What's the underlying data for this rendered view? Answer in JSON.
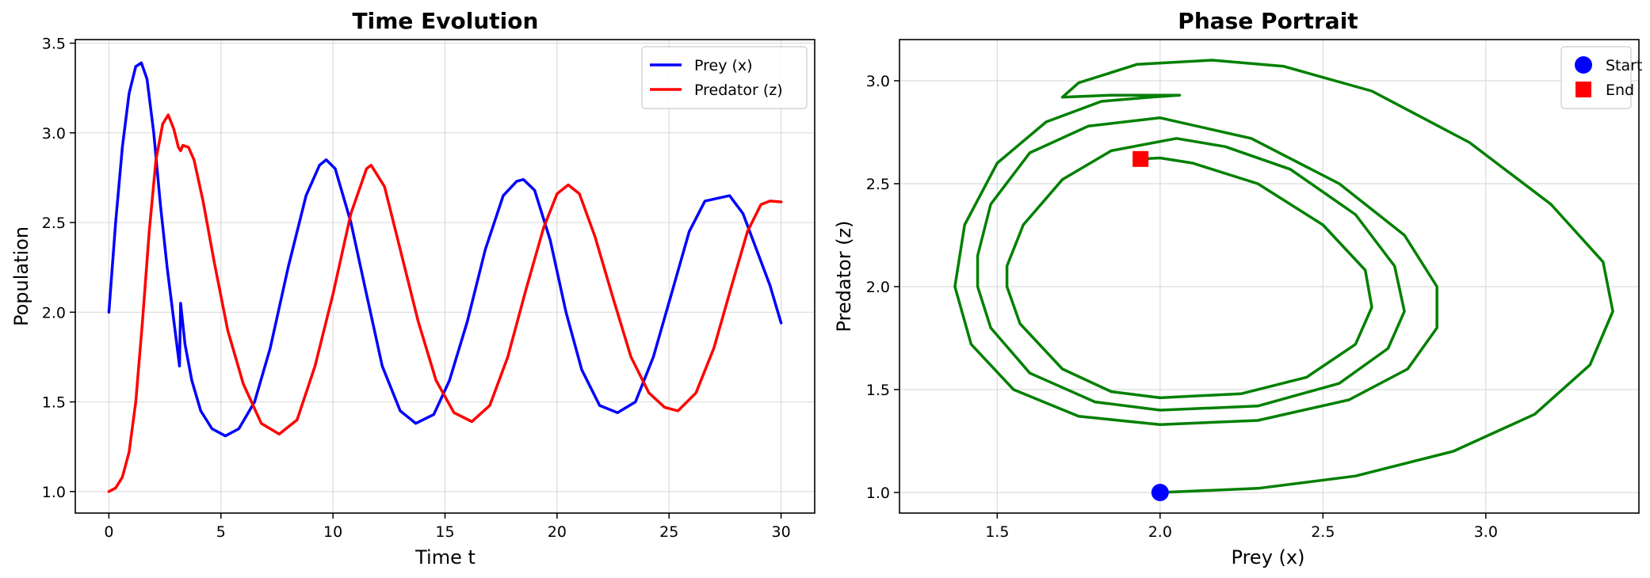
{
  "chart_data": [
    {
      "type": "line",
      "title": "Time Evolution",
      "xlabel": "Time t",
      "ylabel": "Population",
      "xlim": [
        -1.5,
        31.5
      ],
      "ylim": [
        0.88,
        3.52
      ],
      "xticks": [
        0,
        5,
        10,
        15,
        20,
        25,
        30
      ],
      "yticks": [
        1.0,
        1.5,
        2.0,
        2.5,
        3.0,
        3.5
      ],
      "xtick_labels": [
        "0",
        "5",
        "10",
        "15",
        "20",
        "25",
        "30"
      ],
      "ytick_labels": [
        "1.0",
        "1.5",
        "2.0",
        "2.5",
        "3.0",
        "3.5"
      ],
      "grid": true,
      "legend_position": "top-right",
      "series": [
        {
          "name": "Prey (x)",
          "color": "#0000ff",
          "points": [
            [
              0,
              2.0
            ],
            [
              0.3,
              2.5
            ],
            [
              0.6,
              2.92
            ],
            [
              0.9,
              3.22
            ],
            [
              1.2,
              3.37
            ],
            [
              1.45,
              3.39
            ],
            [
              1.7,
              3.3
            ],
            [
              2.0,
              3.0
            ],
            [
              2.3,
              2.6
            ],
            [
              2.6,
              2.25
            ],
            [
              2.9,
              1.95
            ],
            [
              3.1,
              1.75
            ],
            [
              3.15,
              1.7
            ],
            [
              3.18,
              1.9
            ],
            [
              3.2,
              2.05
            ],
            [
              3.4,
              1.82
            ],
            [
              3.7,
              1.62
            ],
            [
              4.1,
              1.45
            ],
            [
              4.6,
              1.35
            ],
            [
              5.2,
              1.31
            ],
            [
              5.8,
              1.35
            ],
            [
              6.5,
              1.5
            ],
            [
              7.2,
              1.8
            ],
            [
              8.0,
              2.25
            ],
            [
              8.8,
              2.65
            ],
            [
              9.4,
              2.82
            ],
            [
              9.7,
              2.85
            ],
            [
              10.1,
              2.8
            ],
            [
              10.8,
              2.5
            ],
            [
              11.5,
              2.1
            ],
            [
              12.2,
              1.7
            ],
            [
              13.0,
              1.45
            ],
            [
              13.7,
              1.38
            ],
            [
              14.5,
              1.43
            ],
            [
              15.2,
              1.62
            ],
            [
              16.0,
              1.95
            ],
            [
              16.8,
              2.35
            ],
            [
              17.6,
              2.65
            ],
            [
              18.2,
              2.73
            ],
            [
              18.5,
              2.74
            ],
            [
              19.0,
              2.68
            ],
            [
              19.7,
              2.4
            ],
            [
              20.4,
              2.0
            ],
            [
              21.1,
              1.68
            ],
            [
              21.9,
              1.48
            ],
            [
              22.7,
              1.44
            ],
            [
              23.5,
              1.5
            ],
            [
              24.3,
              1.75
            ],
            [
              25.1,
              2.1
            ],
            [
              25.9,
              2.45
            ],
            [
              26.6,
              2.62
            ],
            [
              27.7,
              2.65
            ],
            [
              28.3,
              2.55
            ],
            [
              28.9,
              2.35
            ],
            [
              29.5,
              2.15
            ],
            [
              30.0,
              1.94
            ]
          ]
        },
        {
          "name": "Predator (z)",
          "color": "#ff0000",
          "points": [
            [
              0,
              1.0
            ],
            [
              0.3,
              1.02
            ],
            [
              0.6,
              1.08
            ],
            [
              0.9,
              1.22
            ],
            [
              1.2,
              1.5
            ],
            [
              1.5,
              1.95
            ],
            [
              1.8,
              2.45
            ],
            [
              2.1,
              2.85
            ],
            [
              2.4,
              3.05
            ],
            [
              2.65,
              3.1
            ],
            [
              2.9,
              3.02
            ],
            [
              3.1,
              2.92
            ],
            [
              3.2,
              2.9
            ],
            [
              3.3,
              2.93
            ],
            [
              3.55,
              2.92
            ],
            [
              3.8,
              2.85
            ],
            [
              4.2,
              2.62
            ],
            [
              4.7,
              2.28
            ],
            [
              5.3,
              1.9
            ],
            [
              6.0,
              1.6
            ],
            [
              6.8,
              1.38
            ],
            [
              7.6,
              1.32
            ],
            [
              8.4,
              1.4
            ],
            [
              9.2,
              1.7
            ],
            [
              10.0,
              2.1
            ],
            [
              10.8,
              2.55
            ],
            [
              11.5,
              2.8
            ],
            [
              11.7,
              2.82
            ],
            [
              12.3,
              2.7
            ],
            [
              13.0,
              2.35
            ],
            [
              13.8,
              1.95
            ],
            [
              14.6,
              1.62
            ],
            [
              15.4,
              1.44
            ],
            [
              16.2,
              1.39
            ],
            [
              17.0,
              1.48
            ],
            [
              17.8,
              1.75
            ],
            [
              18.6,
              2.12
            ],
            [
              19.4,
              2.47
            ],
            [
              20.0,
              2.66
            ],
            [
              20.5,
              2.71
            ],
            [
              21.0,
              2.66
            ],
            [
              21.7,
              2.42
            ],
            [
              22.5,
              2.08
            ],
            [
              23.3,
              1.75
            ],
            [
              24.1,
              1.55
            ],
            [
              24.8,
              1.47
            ],
            [
              25.4,
              1.45
            ],
            [
              26.2,
              1.55
            ],
            [
              27.0,
              1.8
            ],
            [
              27.8,
              2.15
            ],
            [
              28.5,
              2.45
            ],
            [
              29.1,
              2.6
            ],
            [
              29.5,
              2.62
            ],
            [
              30.0,
              2.615
            ]
          ]
        }
      ]
    },
    {
      "type": "line",
      "title": "Phase Portrait",
      "xlabel": "Prey (x)",
      "ylabel": "Predator (z)",
      "xlim": [
        1.2,
        3.47
      ],
      "ylim": [
        0.9,
        3.2
      ],
      "xticks": [
        1.5,
        2.0,
        2.5,
        3.0
      ],
      "yticks": [
        1.0,
        1.5,
        2.0,
        2.5,
        3.0
      ],
      "xtick_labels": [
        "1.5",
        "2.0",
        "2.5",
        "3.0"
      ],
      "ytick_labels": [
        "1.0",
        "1.5",
        "2.0",
        "2.5",
        "3.0"
      ],
      "grid": true,
      "legend_position": "top-right",
      "series": [
        {
          "name": "",
          "color": "#008000",
          "points": [
            [
              2.0,
              1.0
            ],
            [
              2.3,
              1.02
            ],
            [
              2.6,
              1.08
            ],
            [
              2.9,
              1.2
            ],
            [
              3.15,
              1.38
            ],
            [
              3.32,
              1.62
            ],
            [
              3.39,
              1.88
            ],
            [
              3.36,
              2.12
            ],
            [
              3.2,
              2.4
            ],
            [
              2.95,
              2.7
            ],
            [
              2.65,
              2.95
            ],
            [
              2.38,
              3.07
            ],
            [
              2.16,
              3.1
            ],
            [
              1.93,
              3.08
            ],
            [
              1.75,
              2.99
            ],
            [
              1.7,
              2.92
            ],
            [
              1.85,
              2.93
            ],
            [
              2.06,
              2.93
            ],
            [
              1.97,
              2.92
            ],
            [
              1.82,
              2.9
            ],
            [
              1.65,
              2.8
            ],
            [
              1.5,
              2.6
            ],
            [
              1.4,
              2.3
            ],
            [
              1.37,
              2.0
            ],
            [
              1.42,
              1.72
            ],
            [
              1.55,
              1.5
            ],
            [
              1.75,
              1.37
            ],
            [
              2.0,
              1.33
            ],
            [
              2.3,
              1.35
            ],
            [
              2.58,
              1.45
            ],
            [
              2.76,
              1.6
            ],
            [
              2.85,
              1.8
            ],
            [
              2.85,
              2.0
            ],
            [
              2.75,
              2.25
            ],
            [
              2.55,
              2.5
            ],
            [
              2.28,
              2.72
            ],
            [
              2.0,
              2.82
            ],
            [
              1.78,
              2.78
            ],
            [
              1.6,
              2.65
            ],
            [
              1.48,
              2.4
            ],
            [
              1.44,
              2.15
            ],
            [
              1.44,
              2.0
            ],
            [
              1.48,
              1.8
            ],
            [
              1.6,
              1.58
            ],
            [
              1.8,
              1.44
            ],
            [
              2.0,
              1.4
            ],
            [
              2.3,
              1.42
            ],
            [
              2.55,
              1.53
            ],
            [
              2.7,
              1.7
            ],
            [
              2.75,
              1.88
            ],
            [
              2.72,
              2.1
            ],
            [
              2.6,
              2.35
            ],
            [
              2.4,
              2.57
            ],
            [
              2.2,
              2.68
            ],
            [
              2.05,
              2.72
            ],
            [
              1.85,
              2.66
            ],
            [
              1.7,
              2.52
            ],
            [
              1.58,
              2.3
            ],
            [
              1.53,
              2.1
            ],
            [
              1.53,
              2.0
            ],
            [
              1.57,
              1.82
            ],
            [
              1.7,
              1.6
            ],
            [
              1.85,
              1.49
            ],
            [
              2.0,
              1.46
            ],
            [
              2.25,
              1.48
            ],
            [
              2.45,
              1.56
            ],
            [
              2.6,
              1.72
            ],
            [
              2.65,
              1.9
            ],
            [
              2.63,
              2.08
            ],
            [
              2.5,
              2.3
            ],
            [
              2.3,
              2.5
            ],
            [
              2.1,
              2.6
            ],
            [
              2.0,
              2.625
            ],
            [
              1.94,
              2.62
            ]
          ]
        },
        {
          "name": "Start",
          "type": "marker",
          "shape": "circle",
          "color": "#0000ff",
          "points": [
            [
              2.0,
              1.0
            ]
          ]
        },
        {
          "name": "End",
          "type": "marker",
          "shape": "square",
          "color": "#ff0000",
          "points": [
            [
              1.94,
              2.62
            ]
          ]
        }
      ]
    }
  ]
}
